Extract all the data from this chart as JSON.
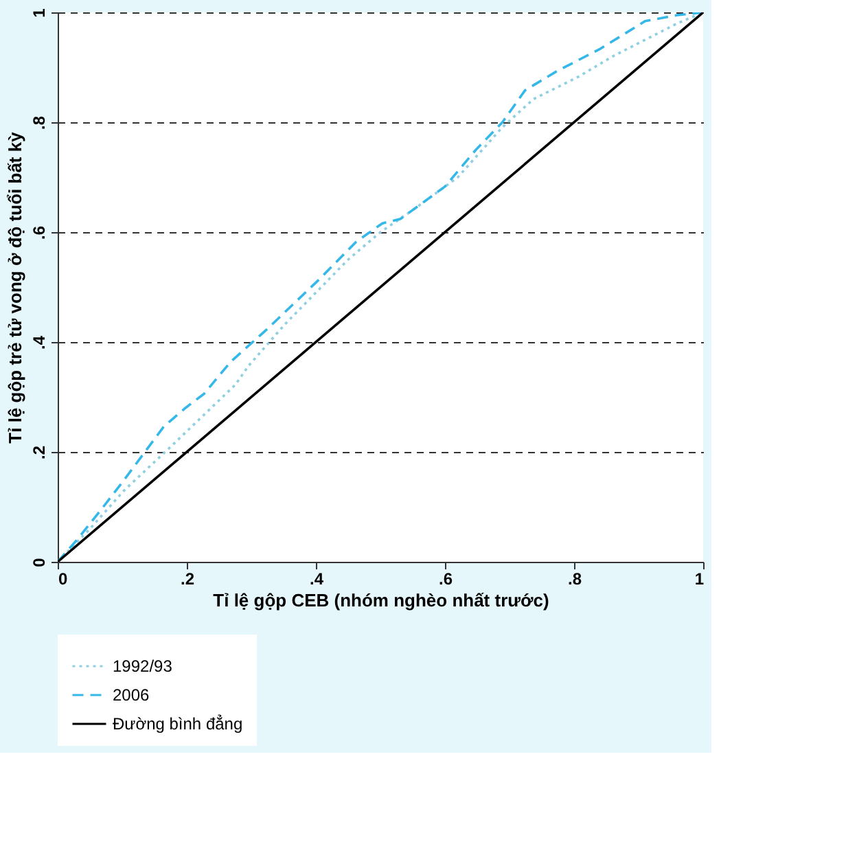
{
  "chart_data": {
    "type": "line",
    "xlabel": "Tỉ lệ gộp CEB (nhóm nghèo nhất trước)",
    "ylabel": "Tỉ lệ gộp trẻ tử vong ở độ tuổi bất kỳ",
    "xlim": [
      0,
      1
    ],
    "ylim": [
      0,
      1
    ],
    "xticks": [
      0,
      {
        "value": 0.2,
        "label": ".2"
      },
      {
        "value": 0.4,
        "label": ".4"
      },
      {
        "value": 0.6,
        "label": ".6"
      },
      {
        "value": 0.8,
        "label": ".8"
      },
      1
    ],
    "yticks": [
      0,
      {
        "value": 0.2,
        "label": ".2"
      },
      {
        "value": 0.4,
        "label": ".4"
      },
      {
        "value": 0.6,
        "label": ".6"
      },
      {
        "value": 0.8,
        "label": ".8"
      },
      1
    ],
    "grid": "y",
    "legend": "bottom",
    "series": [
      {
        "name": "1992/93",
        "color": "#8fcfe0",
        "line_style": "dotted",
        "x": [
          0,
          0.05,
          0.103,
          0.172,
          0.22,
          0.275,
          0.296,
          0.351,
          0.4,
          0.45,
          0.5,
          0.55,
          0.62,
          0.689,
          0.737,
          0.807,
          0.86,
          0.91,
          0.96,
          1
        ],
        "values": [
          0,
          0.06,
          0.13,
          0.206,
          0.26,
          0.322,
          0.357,
          0.431,
          0.49,
          0.55,
          0.6,
          0.64,
          0.7,
          0.791,
          0.842,
          0.883,
          0.92,
          0.95,
          0.98,
          1
        ]
      },
      {
        "name": "2006",
        "color": "#35b8e8",
        "line_style": "dashed",
        "x": [
          0,
          0.03,
          0.068,
          0.099,
          0.165,
          0.199,
          0.227,
          0.268,
          0.324,
          0.406,
          0.462,
          0.503,
          0.531,
          0.6,
          0.648,
          0.689,
          0.724,
          0.772,
          0.841,
          0.91,
          0.96,
          1
        ],
        "values": [
          0,
          0.04,
          0.096,
          0.143,
          0.247,
          0.281,
          0.306,
          0.364,
          0.423,
          0.515,
          0.582,
          0.616,
          0.624,
          0.683,
          0.75,
          0.8,
          0.858,
          0.892,
          0.934,
          0.984,
          0.995,
          1
        ]
      },
      {
        "name": "Đường bình đẳng",
        "color": "#000000",
        "line_style": "solid",
        "x": [
          0,
          1
        ],
        "values": [
          0,
          1
        ]
      }
    ]
  }
}
